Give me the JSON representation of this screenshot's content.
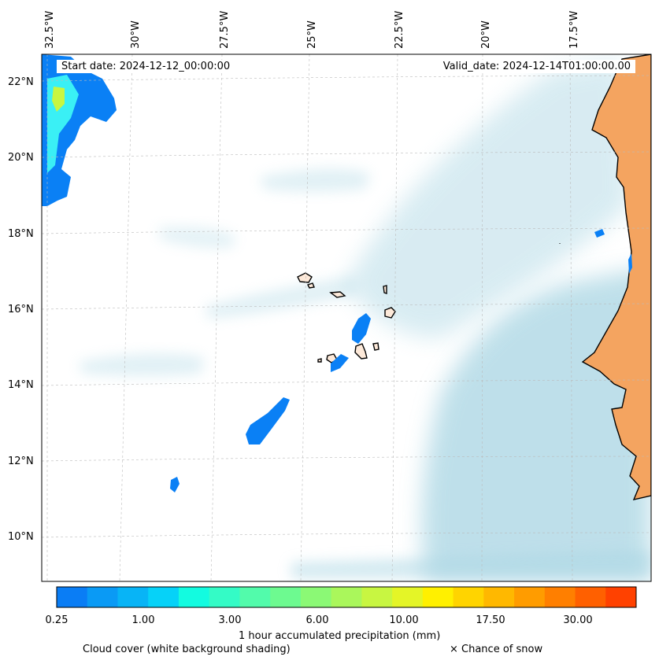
{
  "header": {
    "start_date": "Start date: 2024-12-12_00:00:00",
    "valid_date": "Valid_date: 2024-12-14T01:00:00.00"
  },
  "axes": {
    "lon_labels": [
      "32.5°W",
      "30°W",
      "27.5°W",
      "25°W",
      "22.5°W",
      "20°W",
      "17.5°W"
    ],
    "lat_labels": [
      "22°N",
      "20°N",
      "18°N",
      "16°N",
      "14°N",
      "12°N",
      "10°N"
    ]
  },
  "colorbar": {
    "tick_labels": [
      "0.25",
      "1.00",
      "3.00",
      "6.00",
      "10.00",
      "17.50",
      "30.00"
    ],
    "colors": [
      "#0a7df5",
      "#0a9af5",
      "#08b4f6",
      "#06d2f8",
      "#13fbe0",
      "#34fbc6",
      "#52fbab",
      "#6dfa90",
      "#8bf975",
      "#aaf75b",
      "#c8f641",
      "#e4f527",
      "#fff000",
      "#ffd400",
      "#ffb800",
      "#ff9c00",
      "#ff7f00",
      "#ff6000",
      "#ff4100"
    ],
    "label": "1 hour accumulated precipitation (mm)"
  },
  "legend": {
    "cloud_cover": "Cloud cover (white background shading)",
    "snow": "× Chance of snow"
  },
  "map_colors": {
    "land": "#f4a460",
    "cloud": "#a9d5e3",
    "precip_light": "#0a80f5",
    "precip_mid": "#3af0f5",
    "precip_high": "#c8f641"
  }
}
